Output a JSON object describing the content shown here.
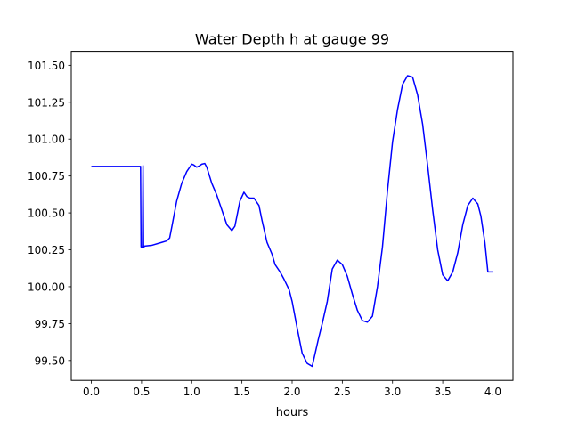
{
  "chart_data": {
    "type": "line",
    "title": "Water Depth h at gauge 99",
    "xlabel": "hours",
    "ylabel": "",
    "xlim": [
      -0.2,
      4.2
    ],
    "ylim": [
      99.365,
      101.595
    ],
    "xticks": [
      0.0,
      0.5,
      1.0,
      1.5,
      2.0,
      2.5,
      3.0,
      3.5,
      4.0
    ],
    "xtick_labels": [
      "0.0",
      "0.5",
      "1.0",
      "1.5",
      "2.0",
      "2.5",
      "3.0",
      "3.5",
      "4.0"
    ],
    "yticks": [
      99.5,
      99.75,
      100.0,
      100.25,
      100.5,
      100.75,
      101.0,
      101.25,
      101.5
    ],
    "ytick_labels": [
      "99.50",
      "99.75",
      "100.00",
      "100.25",
      "100.50",
      "100.75",
      "101.00",
      "101.25",
      "101.50"
    ],
    "grid": false,
    "series": [
      {
        "color": "#0000ff",
        "x": [
          0.0,
          0.49,
          0.495,
          0.5,
          0.51,
          0.515,
          0.52,
          0.525,
          0.53,
          0.6,
          0.7,
          0.75,
          0.78,
          0.8,
          0.85,
          0.9,
          0.95,
          1.0,
          1.02,
          1.05,
          1.08,
          1.1,
          1.13,
          1.15,
          1.2,
          1.25,
          1.3,
          1.35,
          1.4,
          1.43,
          1.48,
          1.52,
          1.55,
          1.58,
          1.62,
          1.67,
          1.7,
          1.75,
          1.8,
          1.83,
          1.88,
          1.92,
          1.97,
          2.0,
          2.05,
          2.1,
          2.15,
          2.2,
          2.23,
          2.26,
          2.3,
          2.35,
          2.4,
          2.45,
          2.5,
          2.55,
          2.6,
          2.65,
          2.7,
          2.75,
          2.8,
          2.85,
          2.9,
          2.95,
          3.0,
          3.05,
          3.1,
          3.15,
          3.2,
          3.25,
          3.3,
          3.35,
          3.4,
          3.45,
          3.5,
          3.55,
          3.6,
          3.65,
          3.7,
          3.75,
          3.8,
          3.85,
          3.88,
          3.92,
          3.95,
          4.0
        ],
        "y": [
          100.815,
          100.815,
          100.27,
          100.27,
          100.27,
          100.82,
          100.27,
          100.27,
          100.275,
          100.28,
          100.3,
          100.31,
          100.33,
          100.4,
          100.58,
          100.7,
          100.78,
          100.83,
          100.825,
          100.81,
          100.82,
          100.83,
          100.835,
          100.81,
          100.7,
          100.62,
          100.52,
          100.42,
          100.38,
          100.41,
          100.58,
          100.64,
          100.61,
          100.6,
          100.6,
          100.55,
          100.45,
          100.3,
          100.22,
          100.15,
          100.1,
          100.05,
          99.98,
          99.9,
          99.72,
          99.55,
          99.48,
          99.46,
          99.55,
          99.64,
          99.75,
          99.9,
          100.12,
          100.18,
          100.15,
          100.07,
          99.95,
          99.84,
          99.77,
          99.76,
          99.8,
          100.0,
          100.27,
          100.65,
          100.98,
          101.2,
          101.37,
          101.43,
          101.42,
          101.3,
          101.1,
          100.82,
          100.52,
          100.25,
          100.08,
          100.04,
          100.1,
          100.23,
          100.42,
          100.55,
          100.6,
          100.56,
          100.48,
          100.3,
          100.1,
          100.1
        ]
      }
    ]
  }
}
